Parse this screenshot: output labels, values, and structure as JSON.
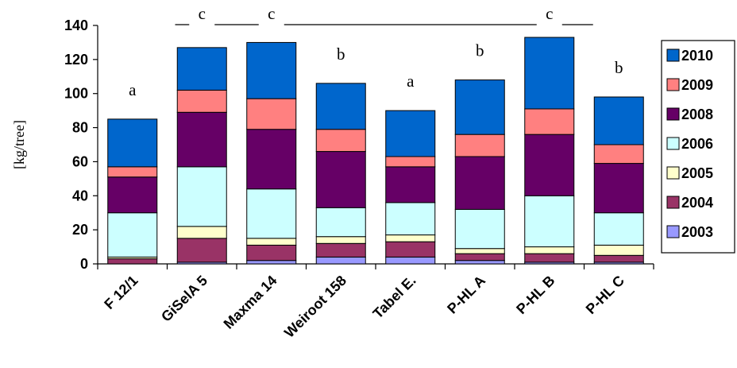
{
  "chart_data": {
    "type": "bar",
    "stacked": true,
    "ylabel": "[kg/tree]",
    "xlabel": "",
    "ylim": [
      0,
      140
    ],
    "yticks": [
      0,
      20,
      40,
      60,
      80,
      100,
      120,
      140
    ],
    "grid": false,
    "legend_position": "right",
    "categories": [
      "F 12/1",
      "GiSelA 5",
      "Maxma 14",
      "Weiroot 158",
      "Tabel E.",
      "P-HL A",
      "P-HL B",
      "P-HL C"
    ],
    "series": [
      {
        "name": "2003",
        "color": "#9999ff",
        "values": [
          0,
          1,
          2,
          4,
          4,
          2,
          1,
          1
        ]
      },
      {
        "name": "2004",
        "color": "#993366",
        "values": [
          3,
          14,
          9,
          8,
          9,
          4,
          5,
          4
        ]
      },
      {
        "name": "2005",
        "color": "#ffffcc",
        "values": [
          1,
          7,
          4,
          4,
          4,
          3,
          4,
          6
        ]
      },
      {
        "name": "2006",
        "color": "#ccffff",
        "values": [
          26,
          35,
          29,
          17,
          19,
          23,
          30,
          19
        ]
      },
      {
        "name": "2008",
        "color": "#660066",
        "values": [
          21,
          32,
          35,
          33,
          21,
          31,
          36,
          29
        ]
      },
      {
        "name": "2009",
        "color": "#ff8080",
        "values": [
          6,
          13,
          18,
          13,
          6,
          13,
          15,
          11
        ]
      },
      {
        "name": "2010",
        "color": "#0066cc",
        "values": [
          28,
          25,
          33,
          27,
          27,
          32,
          42,
          28
        ]
      }
    ],
    "significance_letters": [
      "a",
      "c",
      "c",
      "b",
      "a",
      "b",
      "c",
      "b"
    ],
    "significance_line_label": "c"
  }
}
